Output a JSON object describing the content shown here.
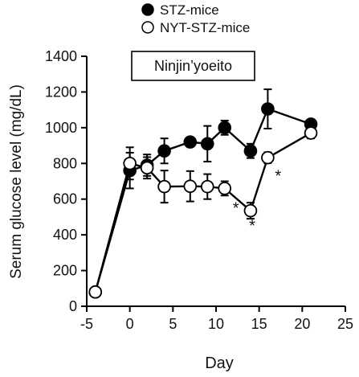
{
  "chart_data": {
    "type": "line",
    "title": "Ninjin’yoeito",
    "xlabel": "Day",
    "ylabel": "Serum glucose level (mg/dL)",
    "xlim": [
      -5,
      25
    ],
    "ylim": [
      0,
      1400
    ],
    "x_ticks": [
      -5,
      0,
      5,
      10,
      15,
      20,
      25
    ],
    "y_ticks": [
      0,
      200,
      400,
      600,
      800,
      1000,
      1200,
      1400
    ],
    "grid": false,
    "legend_position": "top-center",
    "series": [
      {
        "name": "STZ-mice",
        "marker": "filled-circle",
        "color": "#000000",
        "points": [
          {
            "x": -4,
            "y": 80,
            "err": 0
          },
          {
            "x": 0,
            "y": 760,
            "err": 100
          },
          {
            "x": 2,
            "y": 790,
            "err": 60
          },
          {
            "x": 4,
            "y": 870,
            "err": 70
          },
          {
            "x": 7,
            "y": 920,
            "err": 25
          },
          {
            "x": 9,
            "y": 910,
            "err": 100
          },
          {
            "x": 11,
            "y": 1000,
            "err": 40
          },
          {
            "x": 14,
            "y": 870,
            "err": 40
          },
          {
            "x": 16,
            "y": 1105,
            "err": 110
          },
          {
            "x": 21,
            "y": 1020,
            "err": 25
          }
        ]
      },
      {
        "name": "NYT-STZ-mice",
        "marker": "open-circle",
        "color": "#000000",
        "points": [
          {
            "x": -4,
            "y": 80,
            "err": 0
          },
          {
            "x": 0,
            "y": 800,
            "err": 90
          },
          {
            "x": 2,
            "y": 775,
            "err": 60
          },
          {
            "x": 4,
            "y": 670,
            "err": 90
          },
          {
            "x": 7,
            "y": 672,
            "err": 85
          },
          {
            "x": 9,
            "y": 670,
            "err": 70
          },
          {
            "x": 11,
            "y": 660,
            "err": 40
          },
          {
            "x": 14,
            "y": 535,
            "err": 45
          },
          {
            "x": 16,
            "y": 832,
            "err": 30
          },
          {
            "x": 21,
            "y": 970,
            "err": 30
          }
        ]
      }
    ],
    "annotations": [
      {
        "text": "*",
        "x": 12.3,
        "y": 520
      },
      {
        "text": "*",
        "x": 14.2,
        "y": 420
      },
      {
        "text": "*",
        "x": 17.2,
        "y": 700
      }
    ]
  }
}
